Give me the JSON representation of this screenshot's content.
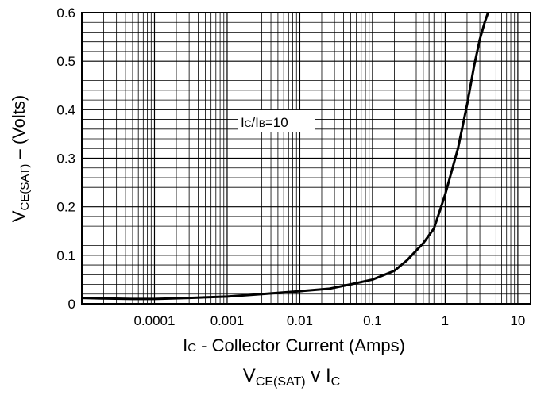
{
  "chart_data": {
    "type": "line",
    "x_scale": "log",
    "xlim": [
      1e-05,
      15
    ],
    "ylim": [
      0,
      0.6
    ],
    "grid": true,
    "y_ticks": [
      "0",
      "0.1",
      "0.2",
      "0.3",
      "0.4",
      "0.5",
      "0.6"
    ],
    "x_ticks": [
      "0.0001",
      "0.001",
      "0.01",
      "0.1",
      "1",
      "10"
    ],
    "ylabel": {
      "main": "V",
      "sub": "CE(SAT)",
      "rest": " – (Volts)"
    },
    "xlabel": {
      "main": "I",
      "sub": "C",
      "rest": " - Collector Current (Amps)"
    },
    "caption": {
      "v": "V",
      "vsub": "CE(SAT)",
      "mid": " v I",
      "isub": "C"
    },
    "annotation": {
      "i1": "I",
      "s1": "C",
      "slash": "/I",
      "s2": "B",
      "val": "=10"
    },
    "series": [
      {
        "color": "#000000",
        "x": [
          1e-05,
          2e-05,
          5e-05,
          0.0001,
          0.0003,
          0.001,
          0.003,
          0.01,
          0.025,
          0.05,
          0.1,
          0.2,
          0.3,
          0.5,
          0.7,
          1.0,
          1.5,
          2.0,
          2.5,
          3.0,
          3.5,
          4.0
        ],
        "y": [
          0.012,
          0.011,
          0.01,
          0.01,
          0.012,
          0.015,
          0.02,
          0.026,
          0.031,
          0.04,
          0.05,
          0.068,
          0.09,
          0.125,
          0.155,
          0.225,
          0.32,
          0.41,
          0.49,
          0.545,
          0.58,
          0.605
        ]
      }
    ]
  }
}
